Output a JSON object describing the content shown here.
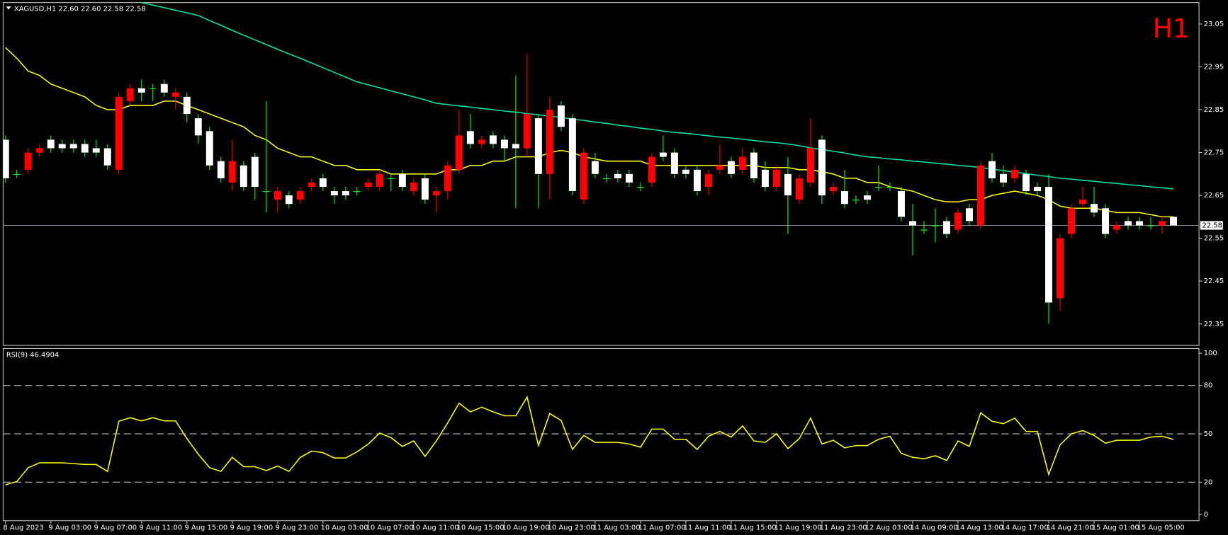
{
  "chart_data": [
    {
      "type": "candlestick",
      "title": "XAGUSD,H1  22.60 22.60 22.58 22.58",
      "period_label": "H1",
      "categories": [
        "8 Aug 2023",
        null,
        null,
        null,
        "9 Aug 03:00",
        null,
        null,
        null,
        "9 Aug 07:00",
        null,
        null,
        null,
        "9 Aug 11:00",
        null,
        null,
        null,
        "9 Aug 15:00",
        null,
        null,
        null,
        "9 Aug 19:00",
        null,
        null,
        null,
        "9 Aug 23:00",
        null,
        null,
        null,
        "10 Aug 03:00",
        null,
        null,
        null,
        "10 Aug 07:00",
        null,
        null,
        null,
        "10 Aug 11:00",
        null,
        null,
        null,
        "10 Aug 15:00",
        null,
        null,
        null,
        "10 Aug 19:00",
        null,
        null,
        null,
        "10 Aug 23:00",
        null,
        null,
        null,
        "11 Aug 03:00",
        null,
        null,
        null,
        "11 Aug 07:00",
        null,
        null,
        null,
        "11 Aug 11:00",
        null,
        null,
        null,
        "11 Aug 15:00",
        null,
        null,
        null,
        "11 Aug 19:00",
        null,
        null,
        null,
        "11 Aug 23:00",
        null,
        null,
        null,
        "12 Aug 03:00",
        null,
        null,
        null,
        "14 Aug 09:00",
        null,
        null,
        null,
        "14 Aug 13:00",
        null,
        null,
        null,
        "14 Aug 17:00",
        null,
        null,
        null,
        "14 Aug 21:00",
        null,
        null,
        null,
        "15 Aug 01:00",
        null,
        null,
        null,
        "15 Aug 05:00",
        null,
        null,
        null
      ],
      "open": [
        22.78,
        22.7,
        22.71,
        22.75,
        22.78,
        22.77,
        22.77,
        22.77,
        22.76,
        22.76,
        22.71,
        22.87,
        22.9,
        22.9,
        22.91,
        22.88,
        22.88,
        22.83,
        22.8,
        22.73,
        22.68,
        22.72,
        22.74,
        22.66,
        22.64,
        22.65,
        22.64,
        22.67,
        22.69,
        22.66,
        22.66,
        22.66,
        22.67,
        22.67,
        22.69,
        22.7,
        22.66,
        22.69,
        22.65,
        22.66,
        22.71,
        22.8,
        22.77,
        22.79,
        22.78,
        22.77,
        22.76,
        22.83,
        22.7,
        22.86,
        22.83,
        22.64,
        22.73,
        22.69,
        22.7,
        22.7,
        22.67,
        22.68,
        22.75,
        22.75,
        22.71,
        22.71,
        22.67,
        22.71,
        22.73,
        22.71,
        22.75,
        22.71,
        22.67,
        22.7,
        22.64,
        22.68,
        22.78,
        22.66,
        22.66,
        22.64,
        22.65,
        22.67,
        22.67,
        22.66,
        22.59,
        22.57,
        22.58,
        22.59,
        22.57,
        22.62,
        22.58,
        22.73,
        22.7,
        22.69,
        22.7,
        22.67,
        22.67,
        22.41,
        22.56,
        22.63,
        22.63,
        22.62,
        22.57,
        22.59,
        22.59,
        22.58,
        22.58,
        22.6
      ],
      "high": [
        22.79,
        22.71,
        22.76,
        22.77,
        22.79,
        22.78,
        22.78,
        22.78,
        22.78,
        22.77,
        22.89,
        22.91,
        22.92,
        22.91,
        22.92,
        22.9,
        22.89,
        22.84,
        22.81,
        22.74,
        22.78,
        22.73,
        22.75,
        22.87,
        22.67,
        22.66,
        22.67,
        22.69,
        22.7,
        22.67,
        22.67,
        22.67,
        22.69,
        22.71,
        22.7,
        22.71,
        22.69,
        22.7,
        22.67,
        22.73,
        22.85,
        22.84,
        22.79,
        22.8,
        22.79,
        22.93,
        22.98,
        22.84,
        22.88,
        22.87,
        22.84,
        22.76,
        22.75,
        22.7,
        22.71,
        22.71,
        22.68,
        22.75,
        22.79,
        22.76,
        22.72,
        22.72,
        22.71,
        22.77,
        22.74,
        22.76,
        22.76,
        22.73,
        22.72,
        22.74,
        22.7,
        22.83,
        22.79,
        22.68,
        22.71,
        22.65,
        22.66,
        22.72,
        22.68,
        22.67,
        22.63,
        22.59,
        22.62,
        22.6,
        22.62,
        22.63,
        22.73,
        22.75,
        22.72,
        22.72,
        22.71,
        22.68,
        22.7,
        22.56,
        22.63,
        22.67,
        22.67,
        22.63,
        22.59,
        22.6,
        22.6,
        22.6,
        22.6,
        22.6
      ],
      "low": [
        22.68,
        22.69,
        22.7,
        22.74,
        22.75,
        22.75,
        22.75,
        22.74,
        22.74,
        22.71,
        22.7,
        22.86,
        22.87,
        22.87,
        22.88,
        22.85,
        22.82,
        22.77,
        22.71,
        22.68,
        22.66,
        22.66,
        22.64,
        22.61,
        22.61,
        22.62,
        22.63,
        22.66,
        22.66,
        22.63,
        22.64,
        22.65,
        22.66,
        22.66,
        22.66,
        22.66,
        22.65,
        22.63,
        22.61,
        22.64,
        22.7,
        22.76,
        22.76,
        22.76,
        22.73,
        22.62,
        22.74,
        22.62,
        22.64,
        22.8,
        22.65,
        22.63,
        22.69,
        22.68,
        22.68,
        22.67,
        22.66,
        22.67,
        22.73,
        22.69,
        22.69,
        22.65,
        22.65,
        22.7,
        22.69,
        22.7,
        22.68,
        22.66,
        22.66,
        22.56,
        22.63,
        22.67,
        22.63,
        22.65,
        22.62,
        22.63,
        22.63,
        22.66,
        22.66,
        22.59,
        22.51,
        22.56,
        22.54,
        22.55,
        22.56,
        22.58,
        22.57,
        22.68,
        22.67,
        22.68,
        22.65,
        22.65,
        22.35,
        22.38,
        22.55,
        22.62,
        22.6,
        22.55,
        22.56,
        22.57,
        22.57,
        22.57,
        22.56,
        22.58
      ],
      "close": [
        22.69,
        22.7,
        22.75,
        22.76,
        22.76,
        22.76,
        22.76,
        22.75,
        22.75,
        22.72,
        22.88,
        22.9,
        22.89,
        22.9,
        22.89,
        22.89,
        22.84,
        22.79,
        22.72,
        22.69,
        22.73,
        22.67,
        22.67,
        22.66,
        22.66,
        22.63,
        22.66,
        22.68,
        22.67,
        22.65,
        22.65,
        22.66,
        22.68,
        22.7,
        22.69,
        22.67,
        22.68,
        22.64,
        22.66,
        22.72,
        22.79,
        22.77,
        22.78,
        22.77,
        22.76,
        22.76,
        22.84,
        22.7,
        22.85,
        22.81,
        22.66,
        22.75,
        22.7,
        22.69,
        22.69,
        22.68,
        22.67,
        22.74,
        22.74,
        22.7,
        22.7,
        22.66,
        22.7,
        22.72,
        22.7,
        22.74,
        22.69,
        22.67,
        22.71,
        22.65,
        22.69,
        22.76,
        22.65,
        22.67,
        22.63,
        22.64,
        22.64,
        22.67,
        22.67,
        22.6,
        22.58,
        22.57,
        22.58,
        22.56,
        22.61,
        22.59,
        22.72,
        22.69,
        22.68,
        22.71,
        22.66,
        22.66,
        22.4,
        22.55,
        22.62,
        22.64,
        22.61,
        22.56,
        22.58,
        22.58,
        22.58,
        22.58,
        22.59,
        22.58
      ],
      "up_color": "#ff0000",
      "down_color": "#ffffff",
      "down_wick_color": "#00ff00",
      "doji_color": "#00ff00",
      "overlays": [
        {
          "color": "#ffff00",
          "values": [
            22.995,
            22.97,
            22.94,
            22.93,
            22.91,
            22.9,
            22.89,
            22.88,
            22.86,
            22.85,
            22.85,
            22.86,
            22.86,
            22.86,
            22.87,
            22.87,
            22.86,
            22.85,
            22.84,
            22.83,
            22.82,
            22.81,
            22.79,
            22.78,
            22.76,
            22.75,
            22.74,
            22.74,
            22.73,
            22.72,
            22.72,
            22.71,
            22.71,
            22.71,
            22.7,
            22.7,
            22.7,
            22.7,
            22.7,
            22.71,
            22.71,
            22.72,
            22.72,
            22.73,
            22.73,
            22.74,
            22.74,
            22.74,
            22.75,
            22.755,
            22.75,
            22.74,
            22.735,
            22.73,
            22.73,
            22.73,
            22.73,
            22.72,
            22.72,
            22.72,
            22.72,
            22.72,
            22.72,
            22.72,
            22.72,
            22.72,
            22.72,
            22.715,
            22.715,
            22.715,
            22.71,
            22.71,
            22.705,
            22.7,
            22.69,
            22.69,
            22.68,
            22.68,
            22.67,
            22.665,
            22.66,
            22.65,
            22.64,
            22.635,
            22.635,
            22.64,
            22.64,
            22.65,
            22.655,
            22.66,
            22.655,
            22.65,
            22.64,
            22.625,
            22.62,
            22.62,
            22.62,
            22.615,
            22.61,
            22.61,
            22.61,
            22.605,
            22.6,
            22.6
          ]
        },
        {
          "color": "#00e5b0",
          "values": [
            null,
            null,
            null,
            null,
            null,
            null,
            null,
            null,
            null,
            null,
            null,
            null,
            23.1,
            23.094,
            23.088,
            23.082,
            23.076,
            23.07,
            23.058,
            23.047,
            23.035,
            23.024,
            23.013,
            23.002,
            22.991,
            22.98,
            22.97,
            22.959,
            22.948,
            22.937,
            22.926,
            22.915,
            22.908,
            22.901,
            22.894,
            22.887,
            22.88,
            22.873,
            22.865,
            22.862,
            22.859,
            22.856,
            22.853,
            22.85,
            22.847,
            22.844,
            22.841,
            22.838,
            22.835,
            22.832,
            22.828,
            22.825,
            22.821,
            22.818,
            22.814,
            22.811,
            22.807,
            22.804,
            22.8,
            22.797,
            22.795,
            22.792,
            22.789,
            22.786,
            22.784,
            22.781,
            22.778,
            22.775,
            22.773,
            22.77,
            22.766,
            22.761,
            22.757,
            22.753,
            22.749,
            22.744,
            22.74,
            22.738,
            22.735,
            22.733,
            22.73,
            22.728,
            22.725,
            22.723,
            22.72,
            22.718,
            22.715,
            22.711,
            22.708,
            22.704,
            22.701,
            22.697,
            22.694,
            22.69,
            22.688,
            22.685,
            22.683,
            22.68,
            22.678,
            22.675,
            22.673,
            22.67,
            22.668,
            22.665
          ]
        }
      ],
      "last_price": 22.58,
      "ylim": [
        22.3,
        23.1
      ],
      "yticks": [
        22.35,
        22.45,
        22.55,
        22.65,
        22.75,
        22.85,
        22.95,
        23.05
      ]
    },
    {
      "type": "line",
      "title": "RSI(9) 46.4904",
      "color": "#ffff00",
      "values": [
        18.4,
        20.4,
        29,
        32,
        32,
        32,
        31.5,
        31,
        31,
        26.7,
        57.8,
        60,
        58,
        60,
        58,
        58,
        47,
        37.4,
        29,
        26.7,
        35.4,
        29.6,
        29.6,
        27.2,
        30,
        26.7,
        35.4,
        39.3,
        38.3,
        35,
        35,
        38.8,
        43.7,
        50.5,
        47.6,
        42.2,
        45.6,
        36,
        45.6,
        56.8,
        69,
        63.6,
        66.5,
        63.6,
        61.2,
        61.2,
        72.8,
        42.7,
        62.6,
        58.3,
        40.3,
        49,
        44.7,
        44.7,
        44.7,
        43.7,
        41.7,
        52.9,
        52.9,
        46.6,
        46.6,
        40.3,
        48.5,
        51.5,
        48,
        54.9,
        45.6,
        44.7,
        50,
        40.8,
        47,
        59.7,
        43.7,
        46,
        41.3,
        42.7,
        42.7,
        46.6,
        48.5,
        37.9,
        35.4,
        34.5,
        36.4,
        33.5,
        45.6,
        42.2,
        63,
        57.8,
        56.3,
        59.7,
        51.5,
        51.5,
        24.8,
        43.2,
        50,
        52,
        49,
        44.2,
        46,
        46,
        46,
        48,
        48.5,
        46.4904
      ],
      "levels": [
        20,
        50,
        80
      ],
      "ylim": [
        0,
        100
      ],
      "yticks": [
        0,
        20,
        50,
        80,
        100
      ]
    }
  ]
}
